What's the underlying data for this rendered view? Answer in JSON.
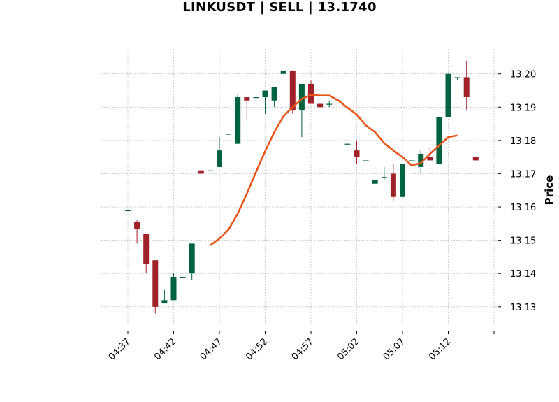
{
  "chart_data": {
    "type": "candlestick",
    "title": "LINKUSDT | SELL | 13.1740",
    "ylabel": "Price",
    "xlabel": "",
    "ylim": [
      13.1245,
      13.2075
    ],
    "grid": true,
    "colors": {
      "up": "#006340",
      "down": "#a02128",
      "ma": "#e8561a"
    },
    "x_ticks": [
      {
        "label": "04:37",
        "index": 0
      },
      {
        "label": "04:42",
        "index": 5
      },
      {
        "label": "04:47",
        "index": 10
      },
      {
        "label": "04:52",
        "index": 15
      },
      {
        "label": "04:57",
        "index": 20
      },
      {
        "label": "05:02",
        "index": 25
      },
      {
        "label": "05:07",
        "index": 30
      },
      {
        "label": "05:12",
        "index": 35
      },
      {
        "label": "",
        "index": 40
      }
    ],
    "y_ticks": [
      13.13,
      13.14,
      13.15,
      13.16,
      13.17,
      13.18,
      13.19,
      13.2
    ],
    "candles": [
      {
        "open": 13.159,
        "high": 13.159,
        "low": 13.159,
        "close": 13.159
      },
      {
        "open": 13.1555,
        "high": 13.156,
        "low": 13.149,
        "close": 13.1535
      },
      {
        "open": 13.152,
        "high": 13.152,
        "low": 13.14,
        "close": 13.143
      },
      {
        "open": 13.144,
        "high": 13.144,
        "low": 13.128,
        "close": 13.13
      },
      {
        "open": 13.131,
        "high": 13.135,
        "low": 13.131,
        "close": 13.132
      },
      {
        "open": 13.132,
        "high": 13.14,
        "low": 13.132,
        "close": 13.139
      },
      {
        "open": 13.139,
        "high": 13.139,
        "low": 13.139,
        "close": 13.139
      },
      {
        "open": 13.14,
        "high": 13.149,
        "low": 13.138,
        "close": 13.149
      },
      {
        "open": 13.171,
        "high": 13.171,
        "low": 13.17,
        "close": 13.17
      },
      {
        "open": 13.171,
        "high": 13.171,
        "low": 13.171,
        "close": 13.171
      },
      {
        "open": 13.172,
        "high": 13.181,
        "low": 13.172,
        "close": 13.177
      },
      {
        "open": 13.182,
        "high": 13.182,
        "low": 13.182,
        "close": 13.182
      },
      {
        "open": 13.179,
        "high": 13.194,
        "low": 13.179,
        "close": 13.193
      },
      {
        "open": 13.193,
        "high": 13.193,
        "low": 13.186,
        "close": 13.192
      },
      {
        "open": 13.193,
        "high": 13.193,
        "low": 13.193,
        "close": 13.193
      },
      {
        "open": 13.193,
        "high": 13.195,
        "low": 13.188,
        "close": 13.195
      },
      {
        "open": 13.192,
        "high": 13.196,
        "low": 13.19,
        "close": 13.196
      },
      {
        "open": 13.2,
        "high": 13.201,
        "low": 13.2,
        "close": 13.201
      },
      {
        "open": 13.201,
        "high": 13.201,
        "low": 13.188,
        "close": 13.189
      },
      {
        "open": 13.189,
        "high": 13.197,
        "low": 13.181,
        "close": 13.197
      },
      {
        "open": 13.197,
        "high": 13.198,
        "low": 13.191,
        "close": 13.191
      },
      {
        "open": 13.191,
        "high": 13.191,
        "low": 13.19,
        "close": 13.19
      },
      {
        "open": 13.191,
        "high": 13.192,
        "low": 13.19,
        "close": 13.191
      },
      {
        "open": 13.192,
        "high": 13.192,
        "low": 13.192,
        "close": 13.192
      },
      {
        "open": 13.179,
        "high": 13.179,
        "low": 13.179,
        "close": 13.179
      },
      {
        "open": 13.177,
        "high": 13.18,
        "low": 13.173,
        "close": 13.175
      },
      {
        "open": 13.174,
        "high": 13.174,
        "low": 13.174,
        "close": 13.174
      },
      {
        "open": 13.167,
        "high": 13.168,
        "low": 13.167,
        "close": 13.168
      },
      {
        "open": 13.169,
        "high": 13.172,
        "low": 13.168,
        "close": 13.169
      },
      {
        "open": 13.17,
        "high": 13.173,
        "low": 13.162,
        "close": 13.163
      },
      {
        "open": 13.163,
        "high": 13.173,
        "low": 13.163,
        "close": 13.173
      },
      {
        "open": 13.174,
        "high": 13.174,
        "low": 13.174,
        "close": 13.174
      },
      {
        "open": 13.172,
        "high": 13.177,
        "low": 13.17,
        "close": 13.176
      },
      {
        "open": 13.175,
        "high": 13.178,
        "low": 13.174,
        "close": 13.174
      },
      {
        "open": 13.173,
        "high": 13.187,
        "low": 13.173,
        "close": 13.187
      },
      {
        "open": 13.187,
        "high": 13.2,
        "low": 13.187,
        "close": 13.2
      },
      {
        "open": 13.199,
        "high": 13.199,
        "low": 13.198,
        "close": 13.199
      },
      {
        "open": 13.199,
        "high": 13.204,
        "low": 13.189,
        "close": 13.193
      },
      {
        "open": 13.175,
        "high": 13.175,
        "low": 13.174,
        "close": 13.174
      }
    ],
    "moving_average": [
      null,
      null,
      null,
      null,
      null,
      null,
      null,
      null,
      null,
      13.1485,
      13.1505,
      13.1532,
      13.158,
      13.164,
      13.1705,
      13.1768,
      13.1825,
      13.1873,
      13.19,
      13.1925,
      13.1937,
      13.1935,
      13.1935,
      13.192,
      13.1898,
      13.1878,
      13.1845,
      13.1825,
      13.1792,
      13.177,
      13.175,
      13.1725,
      13.1732,
      13.176,
      13.1785,
      13.181,
      13.1815,
      null,
      null
    ]
  }
}
